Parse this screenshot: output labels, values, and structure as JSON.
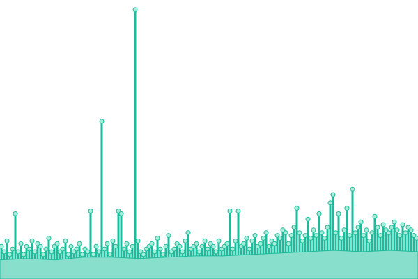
{
  "chart_data": {
    "type": "lollipop",
    "ylim": [
      0,
      100
    ],
    "color": "#1abc9c",
    "dot_fill": "#a8ecd9",
    "area_color": "#88e0cc",
    "values": [
      12,
      10,
      14,
      9,
      11,
      24,
      10,
      13,
      9,
      12,
      11,
      14,
      10,
      13,
      12,
      9,
      11,
      15,
      10,
      12,
      13,
      10,
      11,
      14,
      9,
      12,
      10,
      11,
      13,
      9,
      11,
      10,
      25,
      9,
      12,
      10,
      58,
      11,
      13,
      9,
      14,
      12,
      25,
      24,
      11,
      13,
      10,
      12,
      99,
      14,
      10,
      9,
      11,
      12,
      13,
      10,
      15,
      11,
      9,
      12,
      16,
      10,
      11,
      13,
      12,
      10,
      14,
      17,
      11,
      12,
      13,
      10,
      12,
      14,
      11,
      13,
      12,
      10,
      14,
      11,
      12,
      13,
      25,
      11,
      14,
      25,
      12,
      13,
      15,
      11,
      14,
      16,
      12,
      13,
      15,
      17,
      12,
      14,
      13,
      16,
      15,
      18,
      17,
      13,
      16,
      19,
      26,
      17,
      14,
      16,
      22,
      15,
      18,
      16,
      24,
      17,
      15,
      19,
      28,
      31,
      17,
      24,
      15,
      18,
      26,
      16,
      33,
      17,
      19,
      21,
      16,
      18,
      14,
      17,
      23,
      19,
      16,
      20,
      18,
      17,
      19,
      21,
      18,
      16,
      20,
      17,
      19,
      18,
      16,
      15
    ],
    "area_values": [
      7,
      7.5,
      7,
      8,
      8,
      7.5,
      8,
      8.5,
      8.5,
      9,
      9.5,
      10,
      10.5,
      10,
      10.5,
      10
    ]
  }
}
